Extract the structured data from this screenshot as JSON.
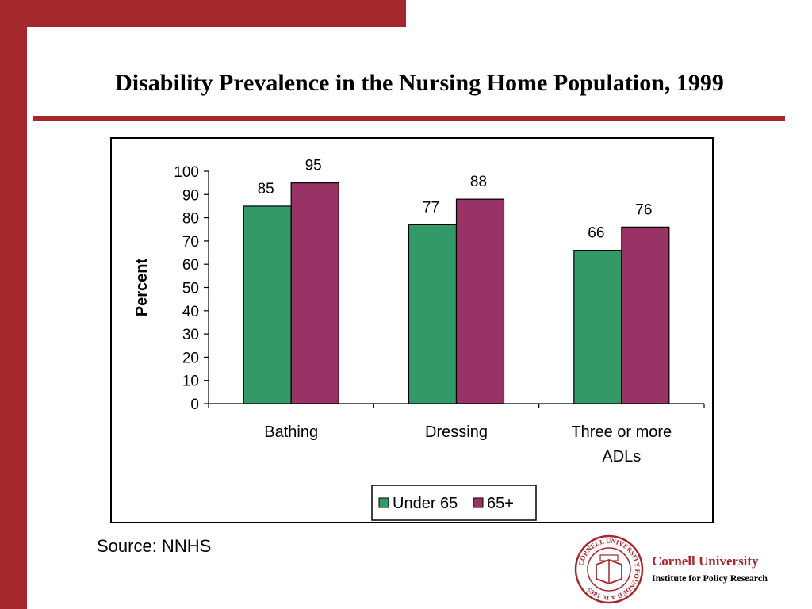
{
  "title": "Disability Prevalence in the Nursing Home Population, 1999",
  "source": "Source: NNHS",
  "footer": {
    "org_name": "Cornell University",
    "org_sub": "Institute for Policy Research",
    "seal_text": "CORNELL UNIVERSITY FOUNDED A.D. 1865"
  },
  "colors": {
    "brand": "#a4282c",
    "under65": "#339966",
    "over65": "#993366"
  },
  "chart_data": {
    "type": "bar",
    "categories": [
      [
        "Bathing"
      ],
      [
        "Dressing"
      ],
      [
        "Three or more",
        "ADLs"
      ]
    ],
    "series": [
      {
        "name": "Under 65",
        "values": [
          85,
          77,
          66
        ]
      },
      {
        "name": "65+",
        "values": [
          95,
          88,
          76
        ]
      }
    ],
    "ylabel": "Percent",
    "ylim": [
      0,
      100
    ],
    "yticks": [
      0,
      10,
      20,
      30,
      40,
      50,
      60,
      70,
      80,
      90,
      100
    ],
    "grid": false,
    "legend": "bottom"
  }
}
